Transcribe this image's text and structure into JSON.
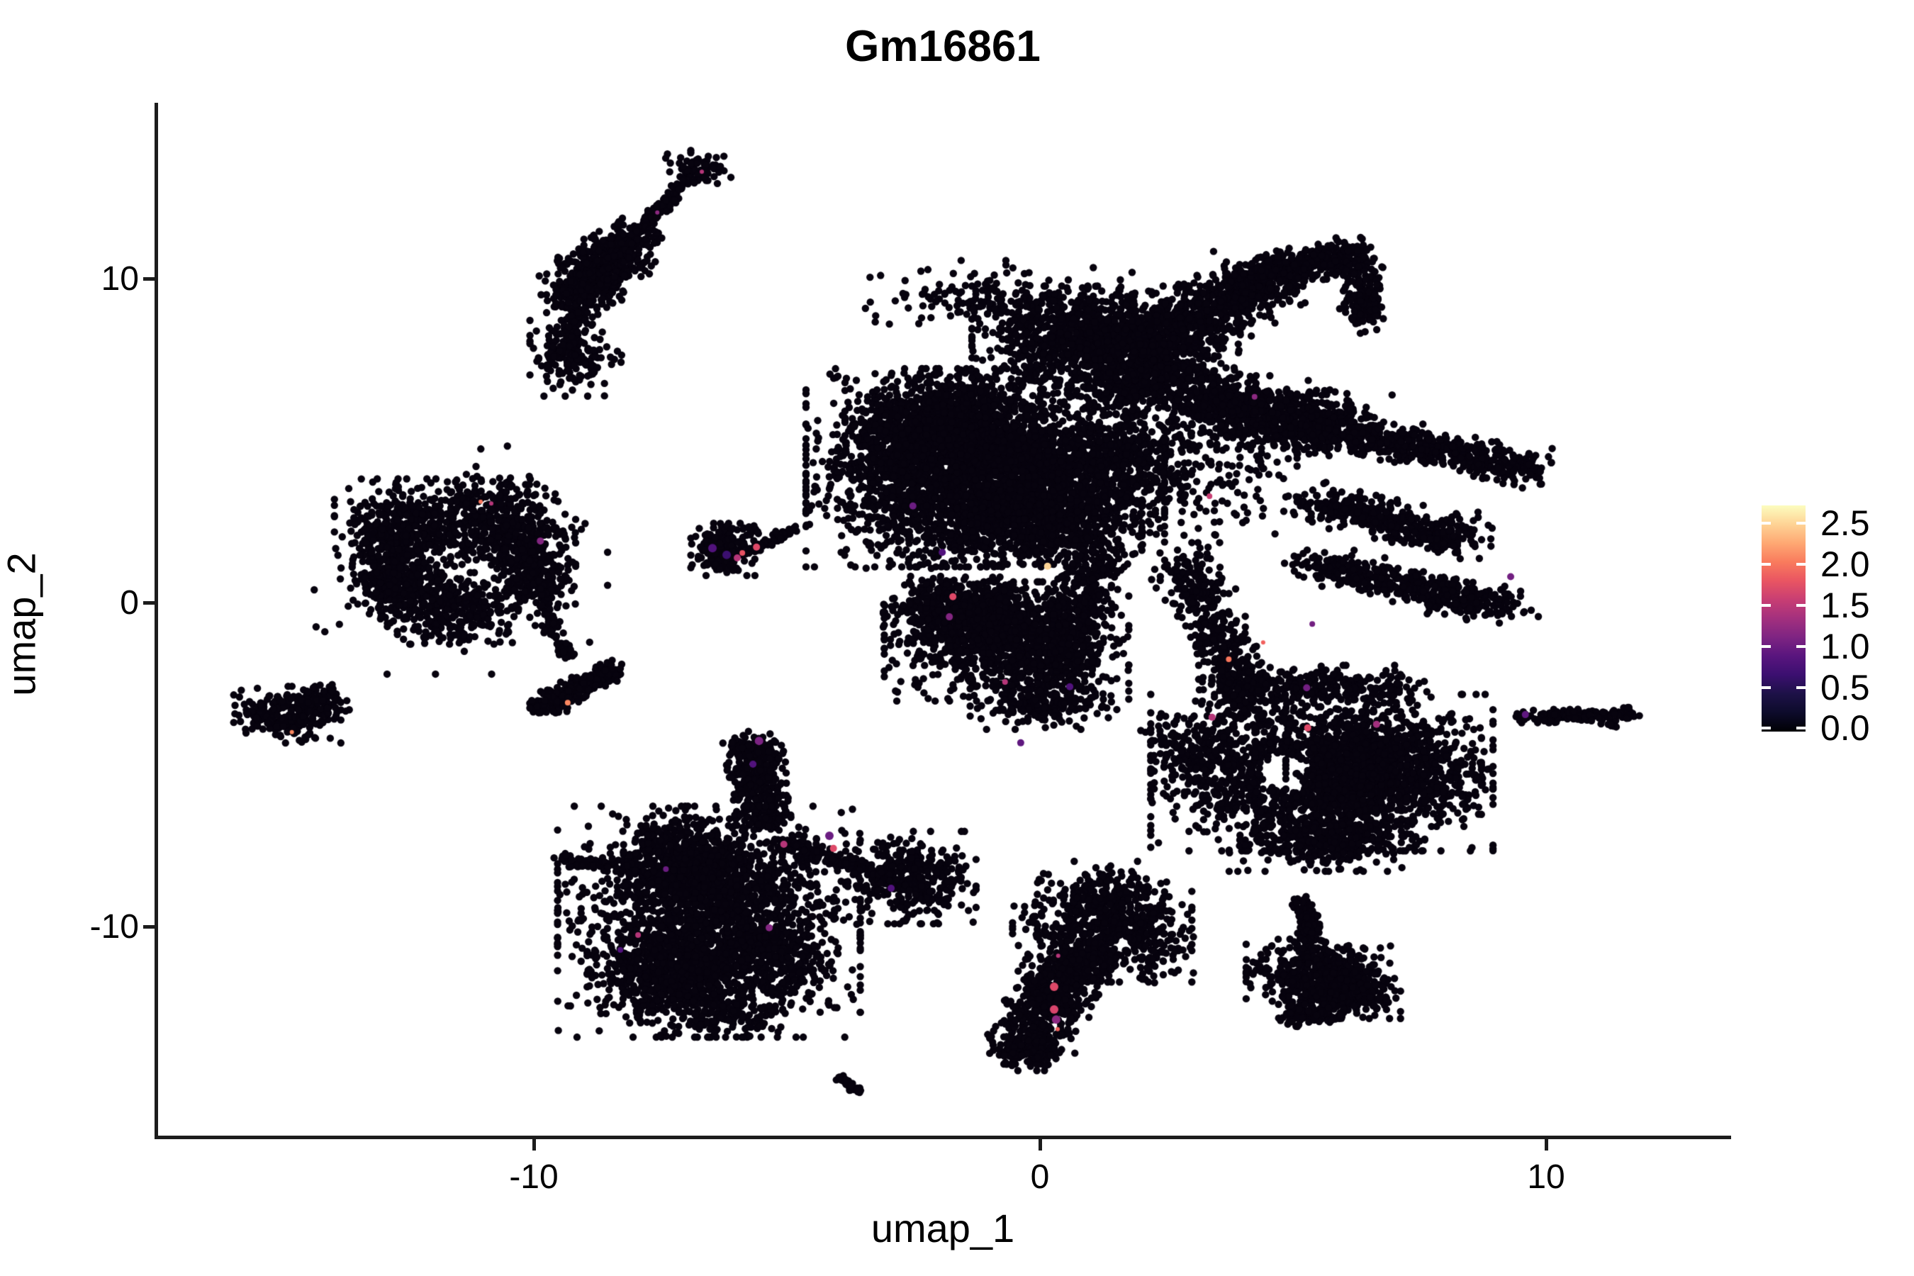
{
  "chart_data": {
    "type": "scatter",
    "title": "Gm16861",
    "xlabel": "umap_1",
    "ylabel": "umap_2",
    "grid": false,
    "legend_position": "right",
    "point_color": "#07030e",
    "point_radius": 5.2,
    "axes": {
      "x": {
        "tick_labels": [
          "-10",
          "0",
          "10"
        ],
        "tick_values": [
          -10,
          0,
          10
        ],
        "lim": [
          -17.423,
          13.585
        ]
      },
      "y": {
        "tick_labels": [
          "10",
          "0",
          "-10"
        ],
        "tick_values": [
          10,
          0,
          -10
        ],
        "lim": [
          -16.455,
          15.426
        ]
      }
    },
    "colorbar": {
      "tick_labels": [
        "2.5",
        "2.0",
        "1.5",
        "1.0",
        "0.5",
        "0.0"
      ],
      "tick_values": [
        2.5,
        2.0,
        1.5,
        1.0,
        0.5,
        0.0
      ],
      "vmin": -0.04,
      "vmax": 2.72,
      "gradient_bottom_to_top": [
        "#000004",
        "#0d0b2b",
        "#1d1147",
        "#3b0f70",
        "#59157e",
        "#7e2482",
        "#a3307e",
        "#c83e73",
        "#e95562",
        "#f97b5d",
        "#fea873",
        "#fed395",
        "#fcfdbf"
      ]
    },
    "clusters": [
      {
        "t": "g",
        "x": -6.75,
        "y": 13.41,
        "sx": 0.28,
        "sy": 0.28,
        "n": 70
      },
      {
        "t": "b",
        "x1": -6.89,
        "y1": 13.13,
        "x2": -8.04,
        "y2": 11.31,
        "jx": 0.07,
        "jy": 0.07,
        "n": 130
      },
      {
        "t": "b",
        "x1": -8.08,
        "y1": 11.23,
        "x2": -9.24,
        "y2": 9.41,
        "jx": 0.33,
        "jy": 0.35,
        "n": 620
      },
      {
        "t": "b",
        "x1": -9.16,
        "y1": 9.41,
        "x2": -9.26,
        "y2": 8.14,
        "jx": 0.12,
        "jy": 0.12,
        "n": 45
      },
      {
        "t": "g",
        "x": -9.34,
        "y": 7.66,
        "sx": 0.32,
        "sy": 0.56,
        "n": 170
      },
      {
        "t": "g",
        "x": -8.71,
        "y": 7.48,
        "sx": 0.35,
        "sy": 0.18,
        "n": 18
      },
      {
        "t": "g",
        "x": -12.49,
        "y": 2.3,
        "sx": 0.63,
        "sy": 0.66,
        "n": 430
      },
      {
        "t": "g",
        "x": -10.67,
        "y": 2.47,
        "sx": 0.56,
        "sy": 0.62,
        "n": 380
      },
      {
        "t": "g",
        "x": -12.7,
        "y": 0.66,
        "sx": 0.42,
        "sy": 0.61,
        "n": 260
      },
      {
        "t": "g",
        "x": -11.58,
        "y": -0.18,
        "sx": 0.63,
        "sy": 0.48,
        "n": 320
      },
      {
        "t": "g",
        "x": -10.07,
        "y": 1.05,
        "sx": 0.39,
        "sy": 0.66,
        "n": 260
      },
      {
        "t": "g",
        "x": -11.44,
        "y": 1.31,
        "sx": 1.26,
        "sy": 1.53,
        "n": 160,
        "hole": [
          -11.37,
          1.42,
          0.55,
          0.85
        ]
      },
      {
        "t": "b",
        "x1": -10.04,
        "y1": 0.88,
        "x2": -9.34,
        "y2": -1.75,
        "jx": 0.09,
        "jy": 0.12,
        "n": 90
      },
      {
        "t": "g",
        "x": -6.23,
        "y": 1.64,
        "sx": 0.29,
        "sy": 0.35,
        "n": 210
      },
      {
        "t": "b",
        "x1": -5.84,
        "y1": 1.53,
        "x2": -4.86,
        "y2": 2.25,
        "jx": 0.06,
        "jy": 0.06,
        "n": 70
      },
      {
        "t": "g",
        "x": -5.91,
        "y": 2.14,
        "sx": 0.3,
        "sy": 0.1,
        "n": 10
      },
      {
        "t": "g",
        "x": -14.87,
        "y": -3.46,
        "sx": 0.46,
        "sy": 0.38,
        "n": 240
      },
      {
        "t": "g",
        "x": -14.29,
        "y": -3.13,
        "sx": 0.28,
        "sy": 0.26,
        "n": 90
      },
      {
        "t": "b",
        "x1": -9.97,
        "y1": -3.28,
        "x2": -8.43,
        "y2": -2.08,
        "jx": 0.16,
        "jy": 0.15,
        "n": 300
      },
      {
        "t": "b",
        "x1": -5.7,
        "y1": -4.2,
        "x2": -5.45,
        "y2": -6.83,
        "jx": 0.25,
        "jy": 0.18,
        "n": 430
      },
      {
        "t": "b",
        "x1": -9.48,
        "y1": -7.88,
        "x2": -7.94,
        "y2": -8.27,
        "jx": 0.1,
        "jy": 0.1,
        "n": 70
      },
      {
        "t": "g",
        "x": -7.03,
        "y": -7.77,
        "sx": 0.52,
        "sy": 0.62,
        "n": 330
      },
      {
        "t": "g",
        "x": -6.54,
        "y": -9.85,
        "sx": 1.3,
        "sy": 1.55,
        "n": 1500
      },
      {
        "t": "g",
        "x": -7.52,
        "y": -11.42,
        "sx": 0.62,
        "sy": 0.72,
        "n": 420
      },
      {
        "t": "g",
        "x": -5.67,
        "y": -10.9,
        "sx": 0.7,
        "sy": 0.83,
        "n": 420
      },
      {
        "t": "g",
        "x": -6.44,
        "y": -8.58,
        "sx": 0.76,
        "sy": 0.61,
        "n": 380
      },
      {
        "t": "b",
        "x1": -5.14,
        "y1": -7.37,
        "x2": -3.25,
        "y2": -8.32,
        "jx": 0.12,
        "jy": 0.14,
        "n": 110
      },
      {
        "t": "g",
        "x": -2.55,
        "y": -8.49,
        "sx": 0.56,
        "sy": 0.62,
        "n": 380
      },
      {
        "t": "g",
        "x": -6.37,
        "y": -12.58,
        "sx": 0.56,
        "sy": 0.35,
        "n": 130
      },
      {
        "t": "b",
        "x1": -3.94,
        "y1": -14.7,
        "x2": -3.57,
        "y2": -15.12,
        "jx": 0.05,
        "jy": 0.05,
        "n": 40
      },
      {
        "t": "g",
        "x": 1.23,
        "y": -9.85,
        "sx": 0.77,
        "sy": 0.81,
        "n": 520
      },
      {
        "t": "g",
        "x": 2.25,
        "y": -10.33,
        "sx": 0.34,
        "sy": 0.61,
        "n": 110
      },
      {
        "t": "b",
        "x1": 0.91,
        "y1": -10.55,
        "x2": -0.27,
        "y2": -13.61,
        "jx": 0.38,
        "jy": 0.3,
        "n": 620
      },
      {
        "t": "g",
        "x": -0.28,
        "y": -13.85,
        "sx": 0.31,
        "sy": 0.26,
        "n": 150
      },
      {
        "t": "g",
        "x": 1.3,
        "y": -9.02,
        "sx": 0.45,
        "sy": 0.25,
        "n": 60
      },
      {
        "t": "b",
        "x1": 5.2,
        "y1": -9.15,
        "x2": 5.35,
        "y2": -10.5,
        "jx": 0.1,
        "jy": 0.1,
        "n": 130
      },
      {
        "t": "g",
        "x": 5.5,
        "y": -11.42,
        "sx": 0.62,
        "sy": 0.46,
        "n": 430
      },
      {
        "t": "g",
        "x": 6.02,
        "y": -12.08,
        "sx": 0.48,
        "sy": 0.33,
        "n": 320
      },
      {
        "t": "g",
        "x": 5.29,
        "y": -12.74,
        "sx": 0.32,
        "sy": 0.15,
        "n": 90
      },
      {
        "t": "g",
        "x": -1.08,
        "y": 4.16,
        "sx": 1.54,
        "sy": 1.33,
        "n": 2800
      },
      {
        "t": "g",
        "x": -1.92,
        "y": 5.47,
        "sx": 0.84,
        "sy": 0.7,
        "n": 800
      },
      {
        "t": "g",
        "x": -0.24,
        "y": 2.63,
        "sx": 0.98,
        "sy": 0.63,
        "n": 700
      },
      {
        "t": "g",
        "x": 0.91,
        "y": 8.32,
        "sx": 0.98,
        "sy": 0.63,
        "n": 800
      },
      {
        "t": "g",
        "x": 2.0,
        "y": 7.11,
        "sx": 0.84,
        "sy": 0.56,
        "n": 600
      },
      {
        "t": "b",
        "x1": 1.96,
        "y1": 7.66,
        "x2": 4.62,
        "y2": 10.24,
        "jx": 0.55,
        "jy": 0.38,
        "n": 800
      },
      {
        "t": "b",
        "x1": 4.52,
        "y1": 10.07,
        "x2": 6.2,
        "y2": 10.9,
        "jx": 0.28,
        "jy": 0.22,
        "n": 300
      },
      {
        "t": "b",
        "x1": 6.29,
        "y1": 10.68,
        "x2": 6.43,
        "y2": 8.71,
        "jx": 0.2,
        "jy": 0.22,
        "n": 180
      },
      {
        "t": "b",
        "x1": 3.12,
        "y1": 6.24,
        "x2": 5.85,
        "y2": 5.36,
        "jx": 0.5,
        "jy": 0.45,
        "n": 900
      },
      {
        "t": "b",
        "x1": 5.92,
        "y1": 5.3,
        "x2": 9.71,
        "y2": 4.11,
        "jx": 0.3,
        "jy": 0.26,
        "n": 550
      },
      {
        "t": "b",
        "x1": 5.43,
        "y1": 3.17,
        "x2": 8.37,
        "y2": 1.93,
        "jx": 0.35,
        "jy": 0.28,
        "n": 450
      },
      {
        "t": "b",
        "x1": 5.36,
        "y1": 1.2,
        "x2": 9.21,
        "y2": -0.18,
        "jx": 0.35,
        "jy": 0.25,
        "n": 480
      },
      {
        "t": "b",
        "x1": 1.3,
        "y1": 1.86,
        "x2": 0.21,
        "y2": -2.36,
        "jx": 0.3,
        "jy": 0.25,
        "n": 480
      },
      {
        "t": "b",
        "x1": 2.82,
        "y1": 1.31,
        "x2": 4.27,
        "y2": -3.61,
        "jx": 0.3,
        "jy": 0.28,
        "n": 480
      },
      {
        "t": "g",
        "x": -2.79,
        "y": 3.5,
        "sx": 0.5,
        "sy": 1.1,
        "n": 180
      },
      {
        "t": "g",
        "x": -0.94,
        "y": 9.41,
        "sx": 1.2,
        "sy": 0.5,
        "n": 160
      },
      {
        "t": "g",
        "x": 1.86,
        "y": 4.38,
        "sx": 1.4,
        "sy": 1.1,
        "n": 700
      },
      {
        "t": "g",
        "x": -2.06,
        "y": -0.11,
        "sx": 0.45,
        "sy": 0.4,
        "n": 200
      },
      {
        "t": "g",
        "x": -0.66,
        "y": -1.2,
        "sx": 1.05,
        "sy": 0.8,
        "n": 950
      },
      {
        "t": "g",
        "x": -1.08,
        "y": -0.18,
        "sx": 0.63,
        "sy": 0.42,
        "n": 320
      },
      {
        "t": "g",
        "x": 0.07,
        "y": -3.11,
        "sx": 0.63,
        "sy": 0.35,
        "n": 220
      },
      {
        "t": "g",
        "x": 5.57,
        "y": -5.25,
        "sx": 1.47,
        "sy": 1.05,
        "n": 1700,
        "hole": [
          4.87,
          -5.25,
          0.5,
          0.55
        ]
      },
      {
        "t": "g",
        "x": 6.79,
        "y": -5.14,
        "sx": 0.84,
        "sy": 0.77,
        "n": 650
      },
      {
        "t": "g",
        "x": 5.67,
        "y": -7.33,
        "sx": 0.84,
        "sy": 0.42,
        "n": 380
      },
      {
        "t": "g",
        "x": 3.12,
        "y": -4.49,
        "sx": 0.49,
        "sy": 0.63,
        "n": 170
      },
      {
        "t": "g",
        "x": 5.39,
        "y": -2.58,
        "sx": 0.98,
        "sy": 0.28,
        "n": 270
      },
      {
        "t": "b",
        "x1": 9.42,
        "y1": -3.54,
        "x2": 11.69,
        "y2": -3.44,
        "jx": 0.1,
        "jy": 0.09,
        "n": 140
      },
      {
        "t": "g",
        "x": 11.18,
        "y": -3.76,
        "sx": 0.15,
        "sy": 0.05,
        "n": 6
      }
    ],
    "highlight_points": [
      {
        "x": -6.68,
        "y": 13.3,
        "c": "#b63679",
        "r": 3
      },
      {
        "x": -7.56,
        "y": 12.04,
        "c": "#8c2981",
        "r": 3
      },
      {
        "x": -9.87,
        "y": 1.9,
        "c": "#832681",
        "r": 5
      },
      {
        "x": -11.05,
        "y": 3.11,
        "c": "#f8765c",
        "r": 3
      },
      {
        "x": -10.84,
        "y": 3.06,
        "c": "#b63679",
        "r": 3
      },
      {
        "x": -9.33,
        "y": -3.09,
        "c": "#fb8861",
        "r": 4
      },
      {
        "x": -6.47,
        "y": 1.68,
        "c": "#51127c",
        "r": 6
      },
      {
        "x": -6.19,
        "y": 1.47,
        "c": "#3b0f70",
        "r": 6
      },
      {
        "x": -5.98,
        "y": 1.38,
        "c": "#b63679",
        "r": 5
      },
      {
        "x": -5.6,
        "y": 1.71,
        "c": "#de4968",
        "r": 5
      },
      {
        "x": -5.88,
        "y": 1.53,
        "c": "#e75263",
        "r": 4
      },
      {
        "x": -14.78,
        "y": -4.0,
        "c": "#fb8861",
        "r": 3
      },
      {
        "x": -5.55,
        "y": -4.27,
        "c": "#7b2382",
        "r": 6
      },
      {
        "x": -5.67,
        "y": -4.99,
        "c": "#51127c",
        "r": 5
      },
      {
        "x": -5.06,
        "y": -7.46,
        "c": "#b63679",
        "r": 5
      },
      {
        "x": -4.16,
        "y": -7.2,
        "c": "#6b1d81",
        "r": 6
      },
      {
        "x": -4.08,
        "y": -7.59,
        "c": "#de4968",
        "r": 5
      },
      {
        "x": -2.94,
        "y": -8.82,
        "c": "#51127c",
        "r": 5
      },
      {
        "x": -5.35,
        "y": -10.04,
        "c": "#832681",
        "r": 5
      },
      {
        "x": -7.94,
        "y": -10.26,
        "c": "#b63679",
        "r": 4
      },
      {
        "x": -8.29,
        "y": -10.72,
        "c": "#51127c",
        "r": 4
      },
      {
        "x": -7.39,
        "y": -8.23,
        "c": "#6b1d81",
        "r": 4
      },
      {
        "x": 0.15,
        "y": 1.12,
        "c": "#fed395",
        "r": 5
      },
      {
        "x": 3.35,
        "y": 3.28,
        "c": "#c83e73",
        "r": 4
      },
      {
        "x": -2.51,
        "y": 2.98,
        "c": "#6b1d81",
        "r": 5
      },
      {
        "x": -1.93,
        "y": 1.55,
        "c": "#51127c",
        "r": 5
      },
      {
        "x": -1.79,
        "y": -0.44,
        "c": "#832681",
        "r": 5
      },
      {
        "x": 3.73,
        "y": -1.75,
        "c": "#f8765c",
        "r": 4
      },
      {
        "x": -0.69,
        "y": -2.45,
        "c": "#b63679",
        "r": 4
      },
      {
        "x": -0.38,
        "y": -4.33,
        "c": "#5f187f",
        "r": 5
      },
      {
        "x": 9.3,
        "y": 0.8,
        "c": "#721f81",
        "r": 5
      },
      {
        "x": 4.24,
        "y": 6.35,
        "c": "#8c2981",
        "r": 4
      },
      {
        "x": 4.41,
        "y": -1.23,
        "c": "#f1605d",
        "r": 3
      },
      {
        "x": 5.38,
        "y": -0.66,
        "c": "#721f81",
        "r": 4
      },
      {
        "x": 0.28,
        "y": -11.86,
        "c": "#de4968",
        "r": 6
      },
      {
        "x": 0.28,
        "y": -12.56,
        "c": "#d8456c",
        "r": 6
      },
      {
        "x": 0.32,
        "y": -12.87,
        "c": "#8c2981",
        "r": 6
      },
      {
        "x": 0.35,
        "y": -13.17,
        "c": "#f1605d",
        "r": 3
      },
      {
        "x": 0.36,
        "y": -10.9,
        "c": "#b63679",
        "r": 3
      },
      {
        "x": -1.72,
        "y": 0.18,
        "c": "#de4968",
        "r": 5
      },
      {
        "x": 0.59,
        "y": -2.6,
        "c": "#51127c",
        "r": 5
      },
      {
        "x": 3.4,
        "y": -3.54,
        "c": "#b63679",
        "r": 5
      },
      {
        "x": 5.27,
        "y": -2.63,
        "c": "#721f81",
        "r": 5
      },
      {
        "x": 5.29,
        "y": -3.87,
        "c": "#de4968",
        "r": 5
      },
      {
        "x": 6.65,
        "y": -3.76,
        "c": "#a3307e",
        "r": 5
      },
      {
        "x": 9.59,
        "y": -3.46,
        "c": "#5f187f",
        "r": 5
      }
    ]
  }
}
